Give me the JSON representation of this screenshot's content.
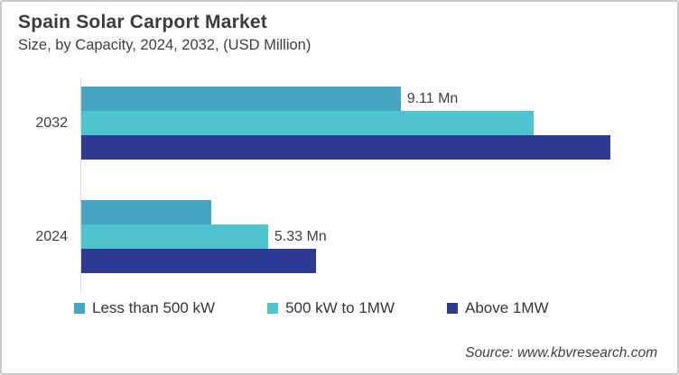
{
  "header": {
    "title": "Spain Solar Carport Market",
    "subtitle": "Size, by Capacity, 2024, 2032, (USD Million)"
  },
  "chart_data": {
    "type": "bar",
    "orientation": "horizontal",
    "title": "Spain Solar Carport Market",
    "subtitle": "Size, by Capacity, 2024, 2032, (USD Million)",
    "unit": "USD Million",
    "categories": [
      "2032",
      "2024"
    ],
    "series": [
      {
        "name": "Less than 500 kW",
        "color": "#46A6C2",
        "values": [
          9.11,
          3.7
        ]
      },
      {
        "name": "500 kW to 1MW",
        "color": "#50C4CE",
        "values": [
          12.9,
          5.33
        ]
      },
      {
        "name": "Above 1MW",
        "color": "#2C3A92",
        "values": [
          15.1,
          6.7
        ]
      }
    ],
    "data_labels": [
      {
        "category": "2032",
        "series": "Less than 500 kW",
        "text": "9.11 Mn"
      },
      {
        "category": "2024",
        "series": "500 kW to 1MW",
        "text": "5.33 Mn"
      }
    ],
    "xlim": [
      0,
      17
    ],
    "grid": false,
    "legend_position": "bottom",
    "axis_color": "#d9d9d9"
  },
  "footer": {
    "source": "Source: www.kbvresearch.com"
  }
}
